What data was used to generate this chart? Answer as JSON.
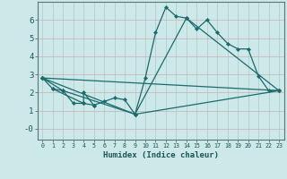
{
  "xlabel": "Humidex (Indice chaleur)",
  "ylabel": "",
  "bg_color": "#cce8e8",
  "grid_color_major": "#b8c8c8",
  "grid_color_minor": "#d4b8b8",
  "line_color": "#1a6b6b",
  "xlim": [
    -0.5,
    23.5
  ],
  "ylim": [
    -0.6,
    7.0
  ],
  "xticks": [
    0,
    1,
    2,
    3,
    4,
    5,
    6,
    7,
    8,
    9,
    10,
    11,
    12,
    13,
    14,
    15,
    16,
    17,
    18,
    19,
    20,
    21,
    22,
    23
  ],
  "yticks": [
    0,
    1,
    2,
    3,
    4,
    5,
    6
  ],
  "ytick_labels": [
    "-0",
    "1",
    "2",
    "3",
    "4",
    "5",
    "6"
  ],
  "series": [
    {
      "x": [
        0,
        1,
        2,
        3,
        4,
        5,
        6,
        7,
        8,
        9,
        10,
        11,
        12,
        13,
        14,
        15,
        16,
        17,
        18,
        19,
        20,
        21,
        22,
        23
      ],
      "y": [
        2.8,
        2.2,
        2.1,
        1.4,
        1.4,
        1.3,
        1.5,
        1.7,
        1.6,
        0.8,
        2.8,
        5.3,
        6.7,
        6.2,
        6.1,
        5.5,
        6.0,
        5.3,
        4.7,
        4.4,
        4.4,
        2.9,
        2.1,
        2.1
      ]
    },
    {
      "x": [
        0,
        23
      ],
      "y": [
        2.8,
        2.1
      ]
    },
    {
      "x": [
        0,
        9,
        23
      ],
      "y": [
        2.8,
        0.8,
        2.1
      ]
    },
    {
      "x": [
        1,
        4,
        4,
        5
      ],
      "y": [
        2.2,
        1.4,
        2.0,
        1.3
      ]
    },
    {
      "x": [
        0,
        2,
        9,
        14,
        23
      ],
      "y": [
        2.8,
        2.1,
        0.8,
        6.1,
        2.1
      ]
    }
  ]
}
